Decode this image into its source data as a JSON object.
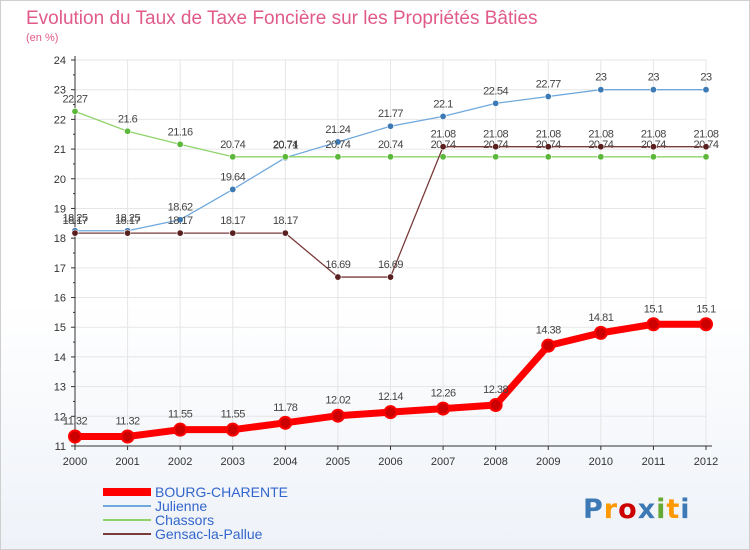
{
  "chart_data": {
    "type": "line",
    "title": "Evolution du Taux de Taxe Foncière sur les Propriétés Bâties",
    "subtitle": "(en %)",
    "xlabel": "",
    "ylabel": "",
    "ylim": [
      11,
      24
    ],
    "yticks": [
      "11",
      "12",
      "13",
      "14",
      "15",
      "16",
      "17",
      "18",
      "19",
      "20",
      "21",
      "22",
      "23",
      "24"
    ],
    "categories": [
      "2000",
      "2001",
      "2002",
      "2003",
      "2004",
      "2005",
      "2006",
      "2007",
      "2008",
      "2009",
      "2010",
      "2011",
      "2012"
    ],
    "grid": true,
    "legend_position": "bottom-left",
    "series": [
      {
        "name": "BOURG-CHARENTE",
        "color": "#ff0000",
        "marker_color": "#cc0000",
        "emphasis": "thick",
        "values": [
          11.32,
          11.32,
          11.55,
          11.55,
          11.78,
          12.02,
          12.14,
          12.26,
          12.38,
          14.38,
          14.81,
          15.1,
          15.1
        ],
        "labels": [
          "11.32",
          "11.32",
          "11.55",
          "11.55",
          "11.78",
          "12.02",
          "12.14",
          "12.26",
          "12.38",
          "14.38",
          "14.81",
          "15.1",
          "15.1"
        ]
      },
      {
        "name": "Julienne",
        "color": "#6fa8dc",
        "marker_color": "#3d7ab5",
        "values": [
          18.25,
          18.25,
          18.62,
          19.64,
          20.71,
          21.24,
          21.77,
          22.1,
          22.54,
          22.77,
          23,
          23,
          23
        ],
        "labels": [
          "18.25",
          "18.25",
          "18.62",
          "19.64",
          "20.71",
          "21.24",
          "21.77",
          "22.1",
          "22.54",
          "22.77",
          "23",
          "23",
          "23"
        ]
      },
      {
        "name": "Chassors",
        "color": "#8fd36a",
        "marker_color": "#5cb83a",
        "values": [
          22.27,
          21.6,
          21.16,
          20.74,
          20.74,
          20.74,
          20.74,
          20.74,
          20.74,
          20.74,
          20.74,
          20.74,
          20.74
        ],
        "labels": [
          "22.27",
          "21.6",
          "21.16",
          "20.74",
          "20.74",
          "20.74",
          "20.74",
          "20.74",
          "20.74",
          "20.74",
          "20.74",
          "20.74",
          "20.74"
        ]
      },
      {
        "name": "Gensac-la-Pallue",
        "color": "#7a3b3b",
        "marker_color": "#5a1f1f",
        "values": [
          18.17,
          18.17,
          18.17,
          18.17,
          18.17,
          16.69,
          16.69,
          21.08,
          21.08,
          21.08,
          21.08,
          21.08,
          21.08
        ],
        "labels": [
          "18.17",
          "18.17",
          "18.17",
          "18.17",
          "18.17",
          "16.69",
          "16.69",
          "21.08",
          "21.08",
          "21.08",
          "21.08",
          "21.08",
          "21.08"
        ]
      }
    ]
  },
  "branding": {
    "logo_text": "Proxiti",
    "logo_colors": [
      "#3d7ab5",
      "#ff9900",
      "#cc0000",
      "#3d7ab5",
      "#66aa33",
      "#ff9900",
      "#3d7ab5"
    ]
  },
  "colors": {
    "title": "#e05a8a",
    "axis": "#333333",
    "grid": "#e6e6e6",
    "legend_text": "#3366cc"
  }
}
